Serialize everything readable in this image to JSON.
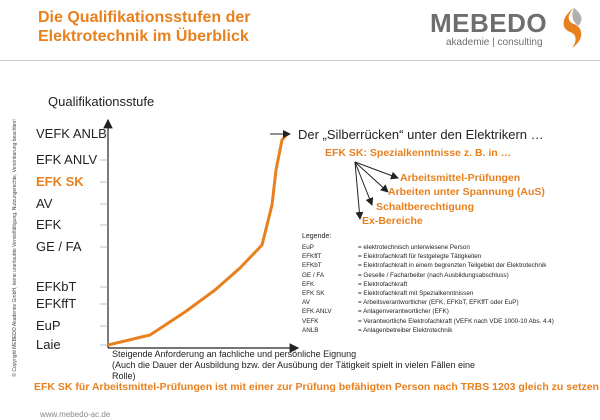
{
  "header": {
    "title_line1": "Die Qualifikationsstufen der",
    "title_line2": "Elektrotechnik im Überblick",
    "logo_word": "MEBEDO",
    "logo_sub": "akademie | consulting"
  },
  "copyright": "© Copyright MEBEDO Akademie GmbH, keine unerlaubte Vervielfältigung, Nutzungsrechte, Vereinbarung beachten!",
  "diagram": {
    "axis_title": "Qualifikationsstufe",
    "levels": [
      {
        "label": "VEFK ANLB",
        "highlight": false
      },
      {
        "label": "EFK ANLV",
        "highlight": false
      },
      {
        "label": "EFK SK",
        "highlight": true
      },
      {
        "label": "AV",
        "highlight": false
      },
      {
        "label": "EFK",
        "highlight": false
      },
      {
        "label": "GE / FA",
        "highlight": false
      },
      {
        "label": "EFKbT",
        "highlight": false
      },
      {
        "label": "EFKffT",
        "highlight": false
      },
      {
        "label": "EuP",
        "highlight": false
      },
      {
        "label": "Laie",
        "highlight": false
      }
    ],
    "x_label_line1": "Steigende Anforderung an fachliche und persönliche Eignung",
    "x_label_line2": "(Auch die Dauer der Ausbildung bzw. der Ausübung der Tätigkeit spielt in vielen Fällen eine",
    "x_label_line3": "Rolle)",
    "quote": "Der „Silberrücken“ unter den Elektrikern …",
    "sk_heading": "EFK SK: Spezialkenntnisse z. B. in …",
    "sk_items": [
      "Arbeitsmittel-Prüfungen",
      "Arbeiten unter Spannung (AuS)",
      "Schaltberechtigung",
      "Ex-Bereiche"
    ],
    "accent_color": "#e8801e"
  },
  "legend": {
    "heading": "Legende:",
    "rows": [
      {
        "key": "EuP",
        "value": "= elektrotechnisch  unterwiesene Person"
      },
      {
        "key": "EFKffT",
        "value": "= Elektrofachkraft  für festgelegte Tätigkeiten"
      },
      {
        "key": "EFKbT",
        "value": "= Elektrofachkraft  in einem begrenzten Teilgebiet  der Elektrotechnik"
      },
      {
        "key": "GE  /  FA",
        "value": "= Geselle / Facharbeiter  (nach Ausbildungsabschluss)"
      },
      {
        "key": "EFK",
        "value": "= Elektrofachkraft"
      },
      {
        "key": "EFK  SK",
        "value": "= Elektrofachkraft  mit Spezialkenntnissen"
      },
      {
        "key": "AV",
        "value": "= Arbeitsverantwortlicher (EFK, EFKbT,  EFKffT  oder EuP)"
      },
      {
        "key": "EFK    ANLV",
        "value": "= Anlagenverantwortlicher (EFK)"
      },
      {
        "key": "VEFK",
        "value": "= Verantwortliche Elektrofachkraft  (VEFK  nach VDE  1000-10  Abs. 4.4)"
      },
      {
        "key": "ANLB",
        "value": "= Anlagenbetreiber  Elektrotechnik"
      }
    ]
  },
  "footer": {
    "note": "EFK SK für Arbeitsmittel-Prüfungen ist mit einer zur Prüfung befähigten Person nach TRBS 1203 gleich zu setzen!",
    "url": "www.mebedo-ac.de"
  }
}
